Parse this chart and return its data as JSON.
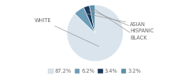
{
  "labels": [
    "WHITE",
    "ASIAN",
    "HISPANIC",
    "BLACK"
  ],
  "values": [
    87.2,
    6.2,
    3.4,
    3.2
  ],
  "colors": [
    "#d9e4ed",
    "#6b9db8",
    "#1b3a5c",
    "#5b8fa8"
  ],
  "legend_labels": [
    "87.2%",
    "6.2%",
    "3.4%",
    "3.2%"
  ],
  "startangle": 90,
  "background_color": "#ffffff",
  "label_fontsize": 4.8,
  "legend_fontsize": 4.8
}
